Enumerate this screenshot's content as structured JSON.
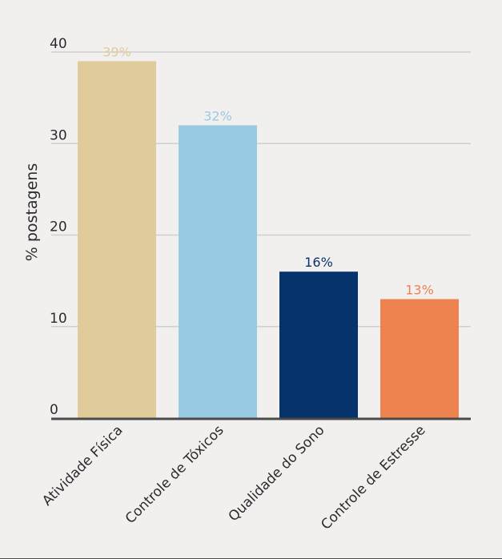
{
  "chart_data": {
    "type": "bar",
    "ylabel": "% postagens",
    "xlabel": "",
    "ylim": [
      0,
      40
    ],
    "yticks": [
      0,
      10,
      20,
      30,
      40
    ],
    "grid": true,
    "categories": [
      "Atividade Física",
      "Controle de Tóxicos",
      "Qualidade do Sono",
      "Controle de Estresse"
    ],
    "values": [
      39,
      32,
      16,
      13
    ],
    "data_labels": [
      "39%",
      "32%",
      "16%",
      "13%"
    ],
    "colors": [
      "#e0cc9b",
      "#98cbe2",
      "#07336c",
      "#ee834f"
    ],
    "label_colors": [
      "#e0cc9b",
      "#98cbe2",
      "#07336c",
      "#ee834f"
    ]
  },
  "colors": {
    "background": "#f2efef",
    "grid": "#cfcfcf",
    "axis": "#4a4a4a"
  }
}
